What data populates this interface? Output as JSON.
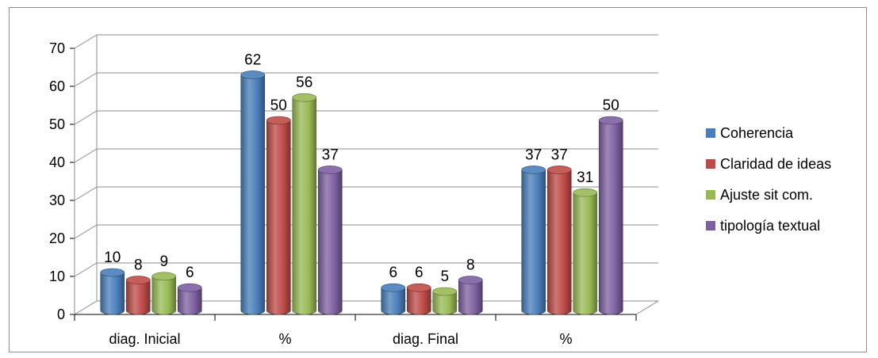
{
  "chart_data": {
    "type": "bar",
    "categories": [
      "diag. Inicial",
      "%",
      "diag. Final",
      "%"
    ],
    "series": [
      {
        "name": "Coherencia",
        "values": [
          10,
          62,
          6,
          37
        ],
        "color": "#4a7ebb"
      },
      {
        "name": "Claridad de ideas",
        "values": [
          8,
          50,
          6,
          37
        ],
        "color": "#be4b48"
      },
      {
        "name": "Ajuste sit com.",
        "values": [
          9,
          56,
          5,
          31
        ],
        "color": "#98b954"
      },
      {
        "name": "tipología textual",
        "values": [
          6,
          37,
          8,
          50
        ],
        "color": "#7d60a0"
      }
    ],
    "y_ticks": [
      "0",
      "10",
      "20",
      "30",
      "40",
      "50",
      "60",
      "70"
    ],
    "ylim": [
      0,
      70
    ],
    "grid": true,
    "legend_position": "right",
    "style": "3d-cylinder"
  }
}
